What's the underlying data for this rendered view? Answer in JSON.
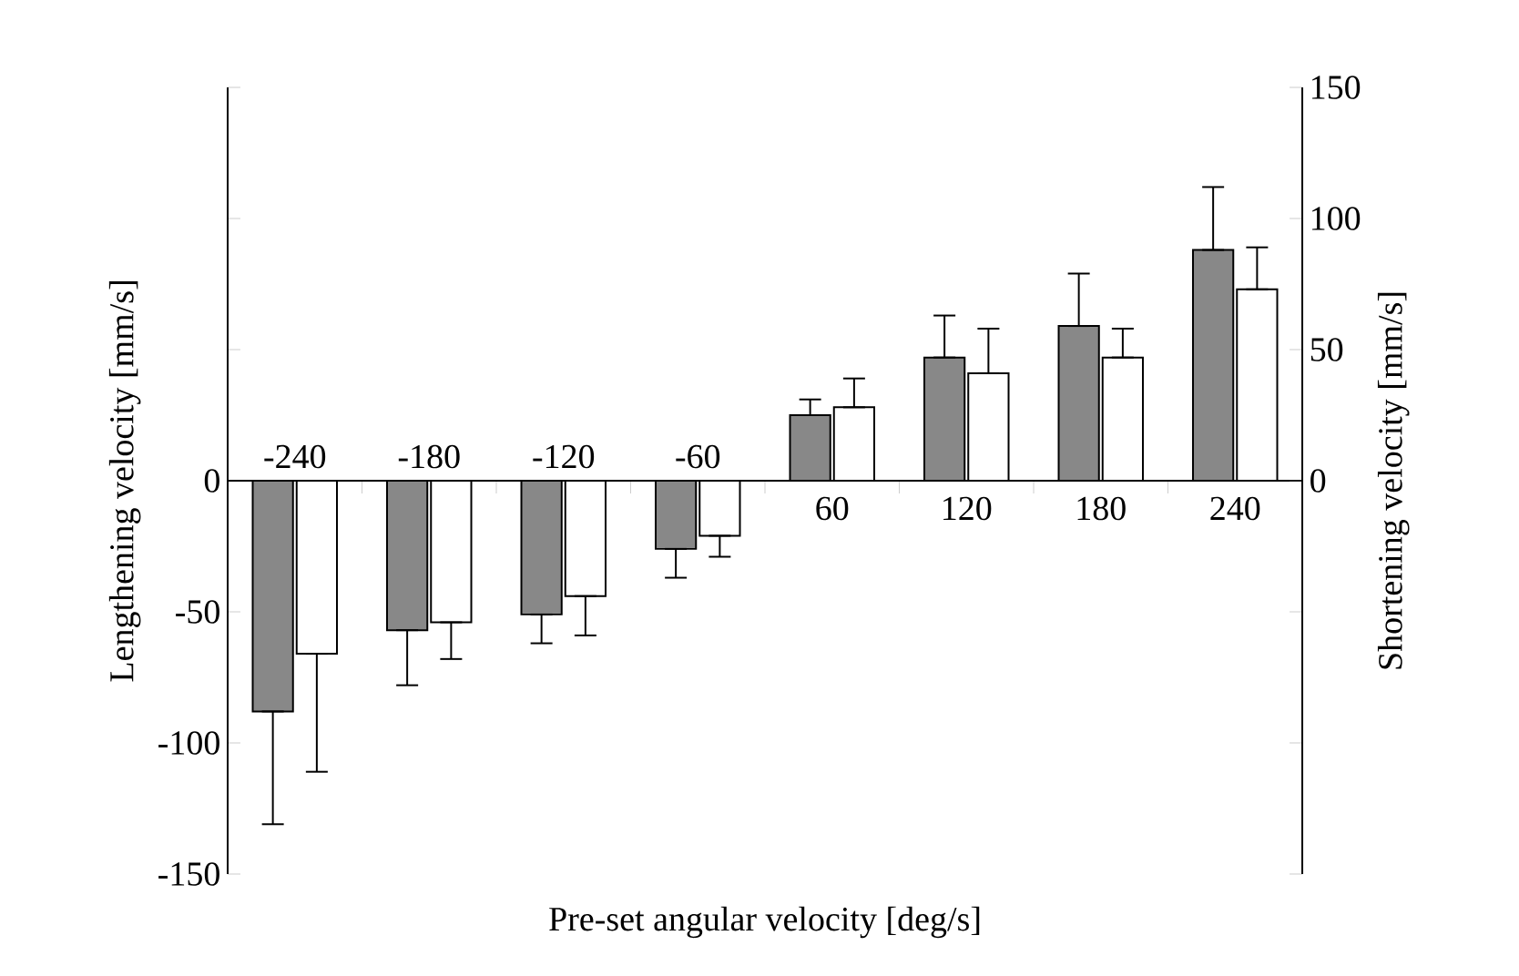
{
  "chart_data": {
    "type": "bar",
    "xlabel": "Pre-set angular velocity [deg/s]",
    "ylabel": "Lengthening velocity [mm/s]",
    "y2label": "Shortening velocity [mm/s]",
    "categories": [
      "-240",
      "-180",
      "-120",
      "-60",
      "60",
      "120",
      "180",
      "240"
    ],
    "series": [
      {
        "color": "#888888",
        "values": [
          -88,
          -57,
          -51,
          -26,
          25,
          47,
          59,
          88
        ],
        "errors": [
          [
            -131,
            -88
          ],
          [
            -78,
            -57
          ],
          [
            -62,
            -51
          ],
          [
            -37,
            -26
          ],
          [
            25,
            31
          ],
          [
            47,
            63
          ],
          [
            59,
            79
          ],
          [
            88,
            112
          ]
        ]
      },
      {
        "color": "#ffffff",
        "values": [
          -66,
          -54,
          -44,
          -21,
          28,
          41,
          47,
          73
        ],
        "errors": [
          [
            -111,
            -66
          ],
          [
            -68,
            -54
          ],
          [
            -59,
            -44
          ],
          [
            -29,
            -21
          ],
          [
            28,
            39
          ],
          [
            41,
            58
          ],
          [
            47,
            58
          ],
          [
            73,
            89
          ]
        ]
      }
    ],
    "ylim": [
      -150,
      150
    ],
    "yticks": [
      -150,
      -100,
      -50,
      0,
      {
        "value": 50,
        "label": null
      },
      {
        "value": 100,
        "label": null
      },
      {
        "value": 150,
        "label": null
      }
    ],
    "y2lim": [
      -150,
      150
    ],
    "y2ticks": [
      {
        "value": -150,
        "label": null
      },
      {
        "value": -100,
        "label": null
      },
      {
        "value": -50,
        "label": null
      },
      0,
      50,
      100,
      150
    ]
  }
}
